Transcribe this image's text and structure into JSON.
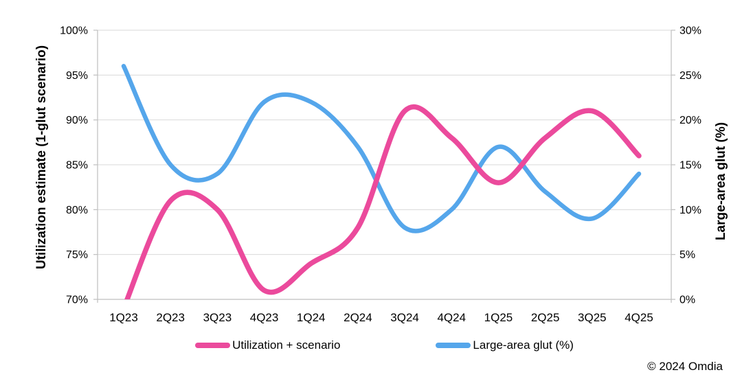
{
  "chart_data": {
    "type": "line",
    "smooth": true,
    "grid": true,
    "legend_position": "bottom",
    "categories": [
      "1Q23",
      "2Q23",
      "3Q23",
      "4Q23",
      "1Q24",
      "2Q24",
      "3Q24",
      "4Q24",
      "1Q25",
      "2Q25",
      "3Q25",
      "4Q25"
    ],
    "series": [
      {
        "name": "Utilization + scenario",
        "axis": "left",
        "color": "#EB4A9C",
        "values": [
          69,
          81,
          80,
          71,
          74,
          78,
          91,
          88,
          83,
          88,
          91,
          86
        ]
      },
      {
        "name": "Large-area glut (%)",
        "axis": "right",
        "color": "#55A6EB",
        "values": [
          26,
          15,
          14,
          22,
          22,
          17,
          8,
          10,
          17,
          12,
          9,
          14
        ]
      }
    ],
    "left_axis": {
      "title": "Utilization estimate (1-glut scenario)",
      "min": 70,
      "max": 100,
      "step": 5,
      "tick_labels": [
        "70%",
        "75%",
        "80%",
        "85%",
        "90%",
        "95%",
        "100%"
      ]
    },
    "right_axis": {
      "title": "Large-area glut (%)",
      "min": 0,
      "max": 30,
      "step": 5,
      "tick_labels": [
        "0%",
        "5%",
        "10%",
        "15%",
        "20%",
        "25%",
        "30%"
      ]
    }
  },
  "legend": {
    "items": [
      {
        "label": "Utilization + scenario",
        "color": "#EB4A9C"
      },
      {
        "label": "Large-area glut (%)",
        "color": "#55A6EB"
      }
    ]
  },
  "footer": {
    "copyright": "© 2024 Omdia"
  },
  "colors": {
    "pink": "#EB4A9C",
    "blue": "#55A6EB",
    "gridline": "#D9D9D9",
    "axis_line": "#BFBFBF",
    "text": "#000000"
  }
}
